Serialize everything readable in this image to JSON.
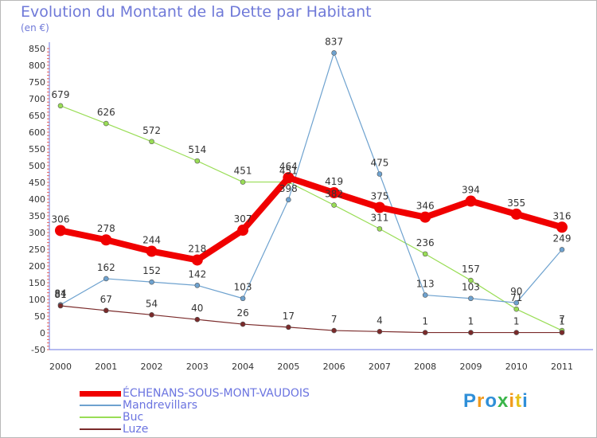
{
  "header": {
    "title": "Evolution du Montant de la Dette par Habitant",
    "unit": "(en €)"
  },
  "chart_data": {
    "type": "line",
    "title": "Evolution du Montant de la Dette par Habitant",
    "ylabel": "(en €)",
    "xlabel": "",
    "x": [
      "2000",
      "2001",
      "2002",
      "2003",
      "2004",
      "2005",
      "2006",
      "2007",
      "2008",
      "2009",
      "2010",
      "2011"
    ],
    "ylim": [
      -50,
      850
    ],
    "yticks": [
      -50,
      0,
      50,
      100,
      150,
      200,
      250,
      300,
      350,
      400,
      450,
      500,
      550,
      600,
      650,
      700,
      750,
      800,
      850
    ],
    "grid": false,
    "legend_position": "bottom",
    "series": [
      {
        "name": "ÉCHENANS-SOUS-MONT-VAUDOIS",
        "color": "#f00000",
        "values": [
          306,
          278,
          244,
          218,
          307,
          464,
          419,
          375,
          346,
          394,
          355,
          316
        ]
      },
      {
        "name": "Mandrevillars",
        "color": "#6ea2cf",
        "values": [
          84,
          162,
          152,
          142,
          103,
          398,
          837,
          475,
          113,
          103,
          90,
          249
        ]
      },
      {
        "name": "Buc",
        "color": "#99dd55",
        "values": [
          679,
          626,
          572,
          514,
          451,
          451,
          382,
          311,
          236,
          157,
          71,
          7
        ]
      },
      {
        "name": "Luze",
        "color": "#7a2a2a",
        "values": [
          81,
          67,
          54,
          40,
          26,
          17,
          7,
          4,
          1,
          1,
          1,
          1
        ]
      }
    ]
  },
  "legend": {
    "items": [
      {
        "label": "ÉCHENANS-SOUS-MONT-VAUDOIS"
      },
      {
        "label": "Mandrevillars"
      },
      {
        "label": "Buc"
      },
      {
        "label": "Luze"
      }
    ]
  },
  "logo": {
    "letters": [
      "P",
      "r",
      "o",
      "x",
      "i",
      "t",
      "i"
    ],
    "colors": [
      "#2f8fd8",
      "#f29a1c",
      "#2f8fd8",
      "#3ab54a",
      "#f29a1c",
      "#e6c21a",
      "#2f8fd8"
    ]
  }
}
